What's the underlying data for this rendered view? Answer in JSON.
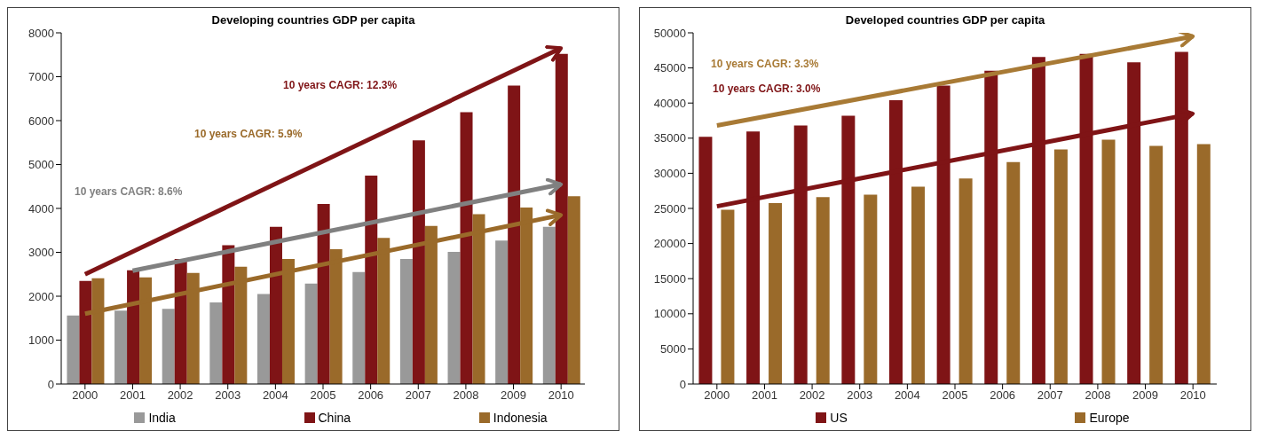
{
  "chart_data": [
    {
      "type": "bar",
      "title": "Developing countries GDP per capita",
      "categories": [
        "2000",
        "2001",
        "2002",
        "2003",
        "2004",
        "2005",
        "2006",
        "2007",
        "2008",
        "2009",
        "2010"
      ],
      "series": [
        {
          "name": "India",
          "color": "#999999",
          "values": [
            1560,
            1670,
            1710,
            1860,
            2050,
            2290,
            2550,
            2850,
            3010,
            3270,
            3580
          ]
        },
        {
          "name": "China",
          "color": "#7f1416",
          "values": [
            2350,
            2590,
            2850,
            3160,
            3580,
            4100,
            4750,
            5550,
            6190,
            6800,
            7520
          ]
        },
        {
          "name": "Indonesia",
          "color": "#9a6a2a",
          "values": [
            2410,
            2430,
            2530,
            2670,
            2850,
            3070,
            3330,
            3600,
            3870,
            4020,
            4280
          ]
        },
        {
          "type": "line",
          "color": "#7f1416",
          "values": [
            2500,
            null,
            null,
            null,
            null,
            null,
            null,
            null,
            null,
            null,
            7650
          ]
        },
        {
          "type": "line",
          "color": "#9a6a2a",
          "values": [
            1600,
            null,
            null,
            null,
            null,
            null,
            null,
            null,
            null,
            null,
            3850
          ]
        },
        {
          "type": "line",
          "color": "#808080",
          "values": [
            null,
            2580,
            null,
            null,
            null,
            null,
            null,
            null,
            null,
            null,
            4550
          ]
        }
      ],
      "annotations": [
        "10 years CAGR: 12.3%",
        "10 years CAGR: 5.9%",
        "10 years CAGR: 8.6%"
      ],
      "ylim": [
        0,
        8000
      ],
      "yticks": [
        0,
        1000,
        2000,
        3000,
        4000,
        5000,
        6000,
        7000,
        8000
      ],
      "grid": false,
      "legend": "bottom"
    },
    {
      "type": "bar",
      "title": "Developed countries GDP per capita",
      "categories": [
        "2000",
        "2001",
        "2002",
        "2003",
        "2004",
        "2005",
        "2006",
        "2007",
        "2008",
        "2009",
        "2010"
      ],
      "series": [
        {
          "name": "US",
          "color": "#7f1416",
          "values": [
            35200,
            35950,
            36800,
            38200,
            40400,
            42500,
            44600,
            46550,
            47000,
            45800,
            47300
          ]
        },
        {
          "name": "Europe",
          "color": "#9a6a2a",
          "values": [
            24800,
            25750,
            26600,
            26950,
            28100,
            29250,
            31600,
            33400,
            34800,
            33900,
            34150
          ]
        },
        {
          "type": "line",
          "color": "#a87a35",
          "values": [
            36800,
            null,
            null,
            null,
            null,
            null,
            null,
            null,
            null,
            null,
            49500
          ]
        },
        {
          "type": "line",
          "color": "#7f1416",
          "values": [
            25300,
            null,
            null,
            null,
            null,
            null,
            null,
            null,
            null,
            null,
            38500
          ]
        }
      ],
      "annotations": [
        "10 years CAGR: 3.3%",
        "10 years CAGR: 3.0%"
      ],
      "ylim": [
        0,
        50000
      ],
      "yticks": [
        0,
        5000,
        10000,
        15000,
        20000,
        25000,
        30000,
        35000,
        40000,
        45000,
        50000
      ],
      "grid": false,
      "legend": "bottom"
    }
  ]
}
